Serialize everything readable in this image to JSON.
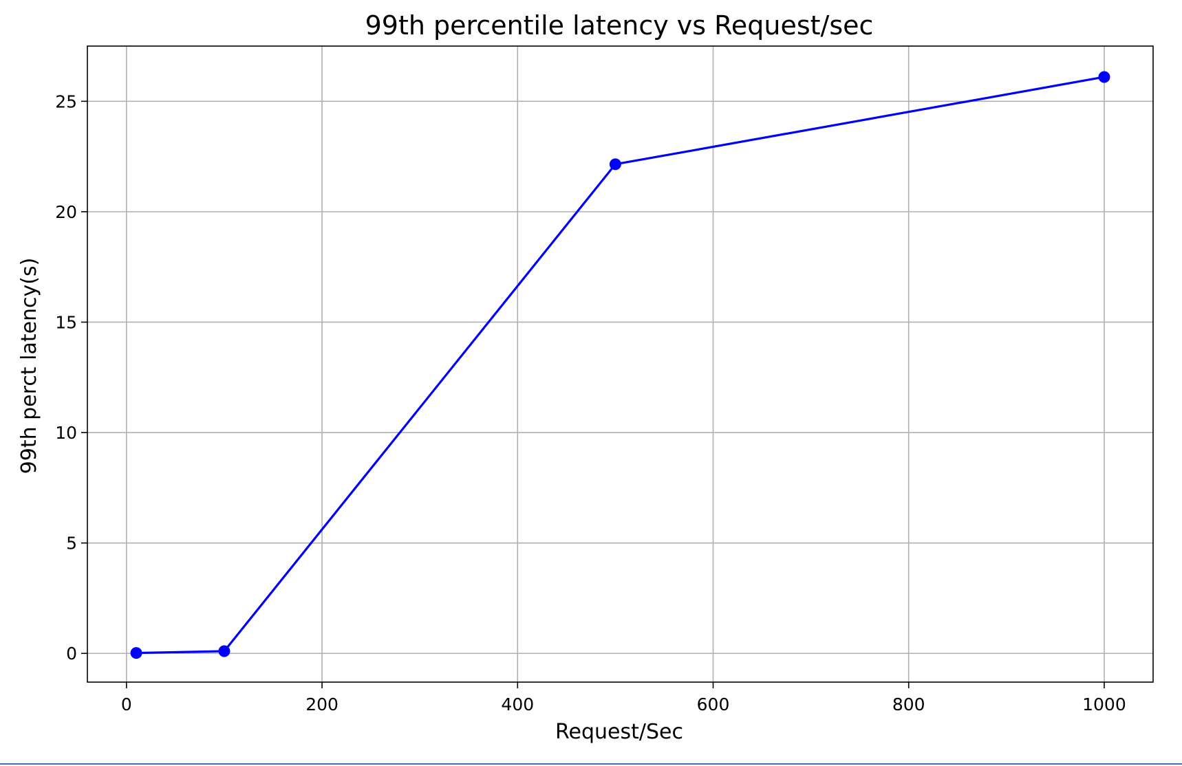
{
  "chart_data": {
    "type": "line",
    "title": "99th percentile latency vs Request/sec",
    "xlabel": "Request/Sec",
    "ylabel": "99th perct latency(s)",
    "x": [
      10,
      100,
      500,
      1000
    ],
    "series": [
      {
        "values": [
          0.02,
          0.1,
          22.15,
          26.1
        ],
        "color": "#0000ff",
        "marker": "circle"
      }
    ],
    "xlim": [
      -40,
      1050
    ],
    "ylim": [
      -1.3,
      27.5
    ],
    "xticks": [
      0,
      200,
      400,
      600,
      800,
      1000
    ],
    "yticks": [
      0,
      5,
      10,
      15,
      20,
      25
    ],
    "grid": true,
    "legend": "none"
  },
  "colors": {
    "line": "#0000ff",
    "grid": "#b0b0b0",
    "axis": "#000000",
    "background": "#ffffff"
  }
}
